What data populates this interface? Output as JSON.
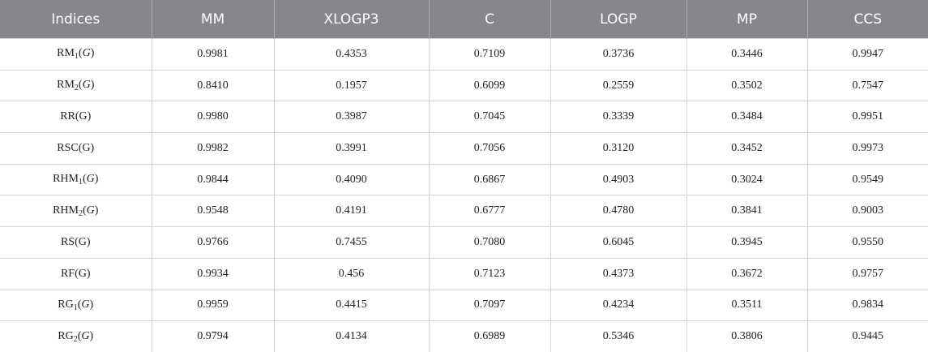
{
  "table": {
    "header": [
      "Indices",
      "MM",
      "XLOGP3",
      "C",
      "LOGP",
      "MP",
      "CCS"
    ],
    "rows": [
      {
        "label": [
          {
            "text": "RM"
          },
          {
            "text": "1",
            "style": "sub"
          },
          {
            "text": "("
          },
          {
            "text": "G",
            "style": "italic"
          },
          {
            "text": ")"
          }
        ],
        "values": [
          "0.9981",
          "0.4353",
          "0.7109",
          "0.3736",
          "0.3446",
          "0.9947"
        ]
      },
      {
        "label": [
          {
            "text": "RM"
          },
          {
            "text": "2",
            "style": "sub"
          },
          {
            "text": "("
          },
          {
            "text": "G",
            "style": "italic"
          },
          {
            "text": ")"
          }
        ],
        "values": [
          "0.8410",
          "0.1957",
          "0.6099",
          "0.2559",
          "0.3502",
          "0.7547"
        ]
      },
      {
        "label": [
          {
            "text": "RR(G)"
          }
        ],
        "values": [
          "0.9980",
          "0.3987",
          "0.7045",
          "0.3339",
          "0.3484",
          "0.9951"
        ]
      },
      {
        "label": [
          {
            "text": "RSC(G)"
          }
        ],
        "values": [
          "0.9982",
          "0.3991",
          "0.7056",
          "0.3120",
          "0.3452",
          "0.9973"
        ]
      },
      {
        "label": [
          {
            "text": "RHM"
          },
          {
            "text": "1",
            "style": "sub"
          },
          {
            "text": "("
          },
          {
            "text": "G",
            "style": "italic"
          },
          {
            "text": ")"
          }
        ],
        "values": [
          "0.9844",
          "0.4090",
          "0.6867",
          "0.4903",
          "0.3024",
          "0.9549"
        ]
      },
      {
        "label": [
          {
            "text": "RHM"
          },
          {
            "text": "2",
            "style": "sub"
          },
          {
            "text": "("
          },
          {
            "text": "G",
            "style": "italic"
          },
          {
            "text": ")"
          }
        ],
        "values": [
          "0.9548",
          "0.4191",
          "0.6777",
          "0.4780",
          "0.3841",
          "0.9003"
        ]
      },
      {
        "label": [
          {
            "text": "RS(G)"
          }
        ],
        "values": [
          "0.9766",
          "0.7455",
          "0.7080",
          "0.6045",
          "0.3945",
          "0.9550"
        ]
      },
      {
        "label": [
          {
            "text": "RF(G)"
          }
        ],
        "values": [
          "0.9934",
          "0.456",
          "0.7123",
          "0.4373",
          "0.3672",
          "0.9757"
        ]
      },
      {
        "label": [
          {
            "text": "RG"
          },
          {
            "text": "1",
            "style": "sub"
          },
          {
            "text": "("
          },
          {
            "text": "G",
            "style": "italic"
          },
          {
            "text": ")"
          }
        ],
        "values": [
          "0.9959",
          "0.4415",
          "0.7097",
          "0.4234",
          "0.3511",
          "0.9834"
        ]
      },
      {
        "label": [
          {
            "text": "RG"
          },
          {
            "text": "2",
            "style": "sub"
          },
          {
            "text": "("
          },
          {
            "text": "G",
            "style": "italic"
          },
          {
            "text": ")"
          }
        ],
        "values": [
          "0.9794",
          "0.4134",
          "0.6989",
          "0.5346",
          "0.3806",
          "0.9445"
        ]
      }
    ]
  }
}
